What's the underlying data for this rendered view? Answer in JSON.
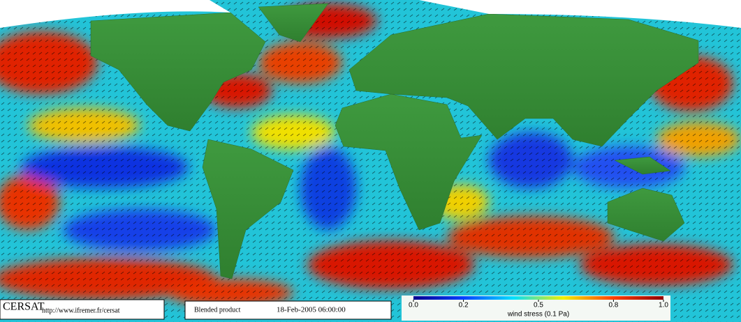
{
  "footer": {
    "logo": "CERSAT",
    "url": "http://www.ifremer.fr/cersat",
    "product": "Blended product",
    "date": "18-Feb-2005 06:00:00"
  },
  "colorbar": {
    "label": "wind stress (0.1 Pa)",
    "range": [
      0,
      1
    ],
    "ticks": [
      {
        "value": 0,
        "label": "0.0"
      },
      0.2,
      0.5,
      0.8,
      {
        "value": 1,
        "label": "1.0"
      }
    ]
  }
}
